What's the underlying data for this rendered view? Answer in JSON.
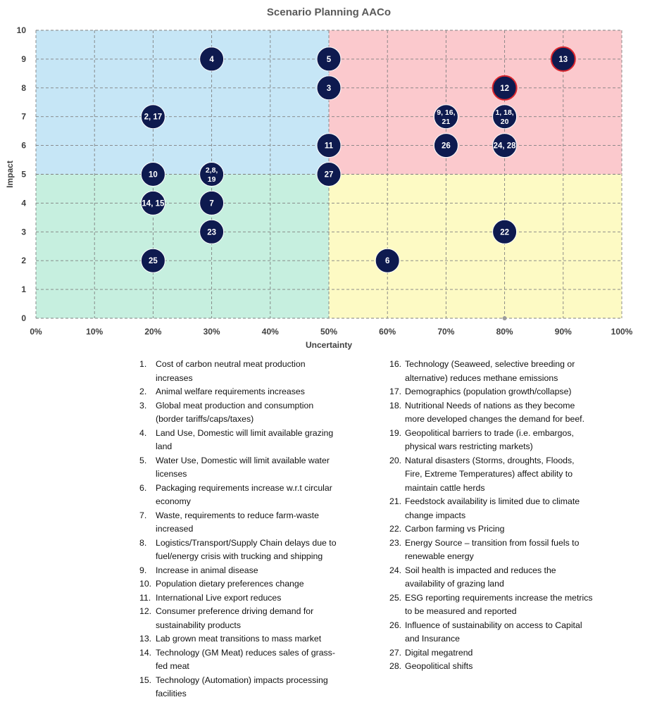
{
  "chart_data": {
    "type": "scatter",
    "title": "Scenario Planning AACo",
    "xlabel": "Uncertainty",
    "ylabel": "Impact",
    "xlim": [
      0,
      100
    ],
    "ylim": [
      0,
      10
    ],
    "x_unit": "%",
    "x_ticks": [
      0,
      10,
      20,
      30,
      40,
      50,
      60,
      70,
      80,
      90,
      100
    ],
    "y_ticks": [
      0,
      1,
      2,
      3,
      4,
      5,
      6,
      7,
      8,
      9,
      10
    ],
    "grid": true,
    "quadrants": [
      {
        "x_range": [
          0,
          50
        ],
        "y_range": [
          5,
          10
        ],
        "color": "#c6e6f6"
      },
      {
        "x_range": [
          50,
          100
        ],
        "y_range": [
          5,
          10
        ],
        "color": "#fbc9cd"
      },
      {
        "x_range": [
          0,
          50
        ],
        "y_range": [
          0,
          5
        ],
        "color": "#c6efdf"
      },
      {
        "x_range": [
          50,
          100
        ],
        "y_range": [
          0,
          5
        ],
        "color": "#fdfac4"
      }
    ],
    "colors": {
      "marker": "#0e1a4f",
      "highlight_outline": "#d9262e",
      "grid": "#808080"
    },
    "points": [
      {
        "label": "4",
        "x": 30,
        "y": 9
      },
      {
        "label": "5",
        "x": 50,
        "y": 9
      },
      {
        "label": "13",
        "x": 90,
        "y": 9,
        "highlight": true
      },
      {
        "label": "3",
        "x": 50,
        "y": 8
      },
      {
        "label": "12",
        "x": 80,
        "y": 8,
        "highlight": true
      },
      {
        "label": "2, 17",
        "x": 20,
        "y": 7
      },
      {
        "label": "9, 16,\n21",
        "x": 70,
        "y": 7
      },
      {
        "label": "1, 18,\n20",
        "x": 80,
        "y": 7
      },
      {
        "label": "11",
        "x": 50,
        "y": 6
      },
      {
        "label": "26",
        "x": 70,
        "y": 6
      },
      {
        "label": "24, 28",
        "x": 80,
        "y": 6
      },
      {
        "label": "10",
        "x": 20,
        "y": 5
      },
      {
        "label": "2,8,\n19",
        "x": 30,
        "y": 5
      },
      {
        "label": "27",
        "x": 50,
        "y": 5
      },
      {
        "label": "14, 15",
        "x": 20,
        "y": 4
      },
      {
        "label": "7",
        "x": 30,
        "y": 4
      },
      {
        "label": "23",
        "x": 30,
        "y": 3
      },
      {
        "label": "22",
        "x": 80,
        "y": 3
      },
      {
        "label": "25",
        "x": 20,
        "y": 2
      },
      {
        "label": "6",
        "x": 60,
        "y": 2
      }
    ]
  },
  "legend": {
    "left": [
      {
        "num": "1.",
        "text": "Cost of carbon neutral meat production increases"
      },
      {
        "num": "2.",
        "text": "Animal welfare requirements increases"
      },
      {
        "num": "3.",
        "text": "Global meat production and consumption (border tariffs/caps/taxes)"
      },
      {
        "num": "4.",
        "text": "Land Use, Domestic will limit available grazing land"
      },
      {
        "num": "5.",
        "text": "Water Use, Domestic will limit available water licenses"
      },
      {
        "num": "6.",
        "text": "Packaging requirements increase w.r.t circular economy"
      },
      {
        "num": "7.",
        "text": "Waste, requirements to reduce farm-waste increased"
      },
      {
        "num": "8.",
        "text": "Logistics/Transport/Supply Chain delays due to fuel/energy crisis with trucking and shipping"
      },
      {
        "num": "9.",
        "text": "Increase in animal disease"
      },
      {
        "num": "10.",
        "text": "Population dietary preferences change"
      },
      {
        "num": "11.",
        "text": "International Live export reduces"
      },
      {
        "num": "12.",
        "text": "Consumer preference driving demand for sustainability products"
      },
      {
        "num": "13.",
        "text": "Lab grown meat transitions to mass market"
      },
      {
        "num": "14.",
        "text": "Technology (GM Meat) reduces sales of grass-fed meat"
      },
      {
        "num": "15.",
        "text": "Technology (Automation) impacts processing facilities"
      }
    ],
    "right": [
      {
        "num": "16.",
        "text": "Technology (Seaweed, selective breeding or alternative) reduces methane emissions"
      },
      {
        "num": "17.",
        "text": "Demographics (population growth/collapse)"
      },
      {
        "num": "18.",
        "text": "Nutritional Needs of nations as they become more developed changes the demand for beef."
      },
      {
        "num": "19.",
        "text": "Geopolitical barriers to trade (i.e. embargos, physical wars restricting markets)"
      },
      {
        "num": "20.",
        "text": "Natural disasters (Storms, droughts, Floods, Fire, Extreme Temperatures) affect ability to maintain cattle herds"
      },
      {
        "num": "21.",
        "text": "Feedstock availability is limited due to climate change impacts"
      },
      {
        "num": "22.",
        "text": "Carbon farming vs Pricing"
      },
      {
        "num": "23.",
        "text": "Energy Source – transition from fossil fuels to renewable energy"
      },
      {
        "num": "24.",
        "text": "Soil health is impacted and reduces the availability of grazing land"
      },
      {
        "num": "25.",
        "text": "ESG reporting requirements increase the metrics to be measured and reported"
      },
      {
        "num": "26.",
        "text": "Influence of sustainability on access to Capital and Insurance"
      },
      {
        "num": "27.",
        "text": "Digital megatrend"
      },
      {
        "num": "28.",
        "text": "Geopolitical shifts"
      }
    ]
  }
}
